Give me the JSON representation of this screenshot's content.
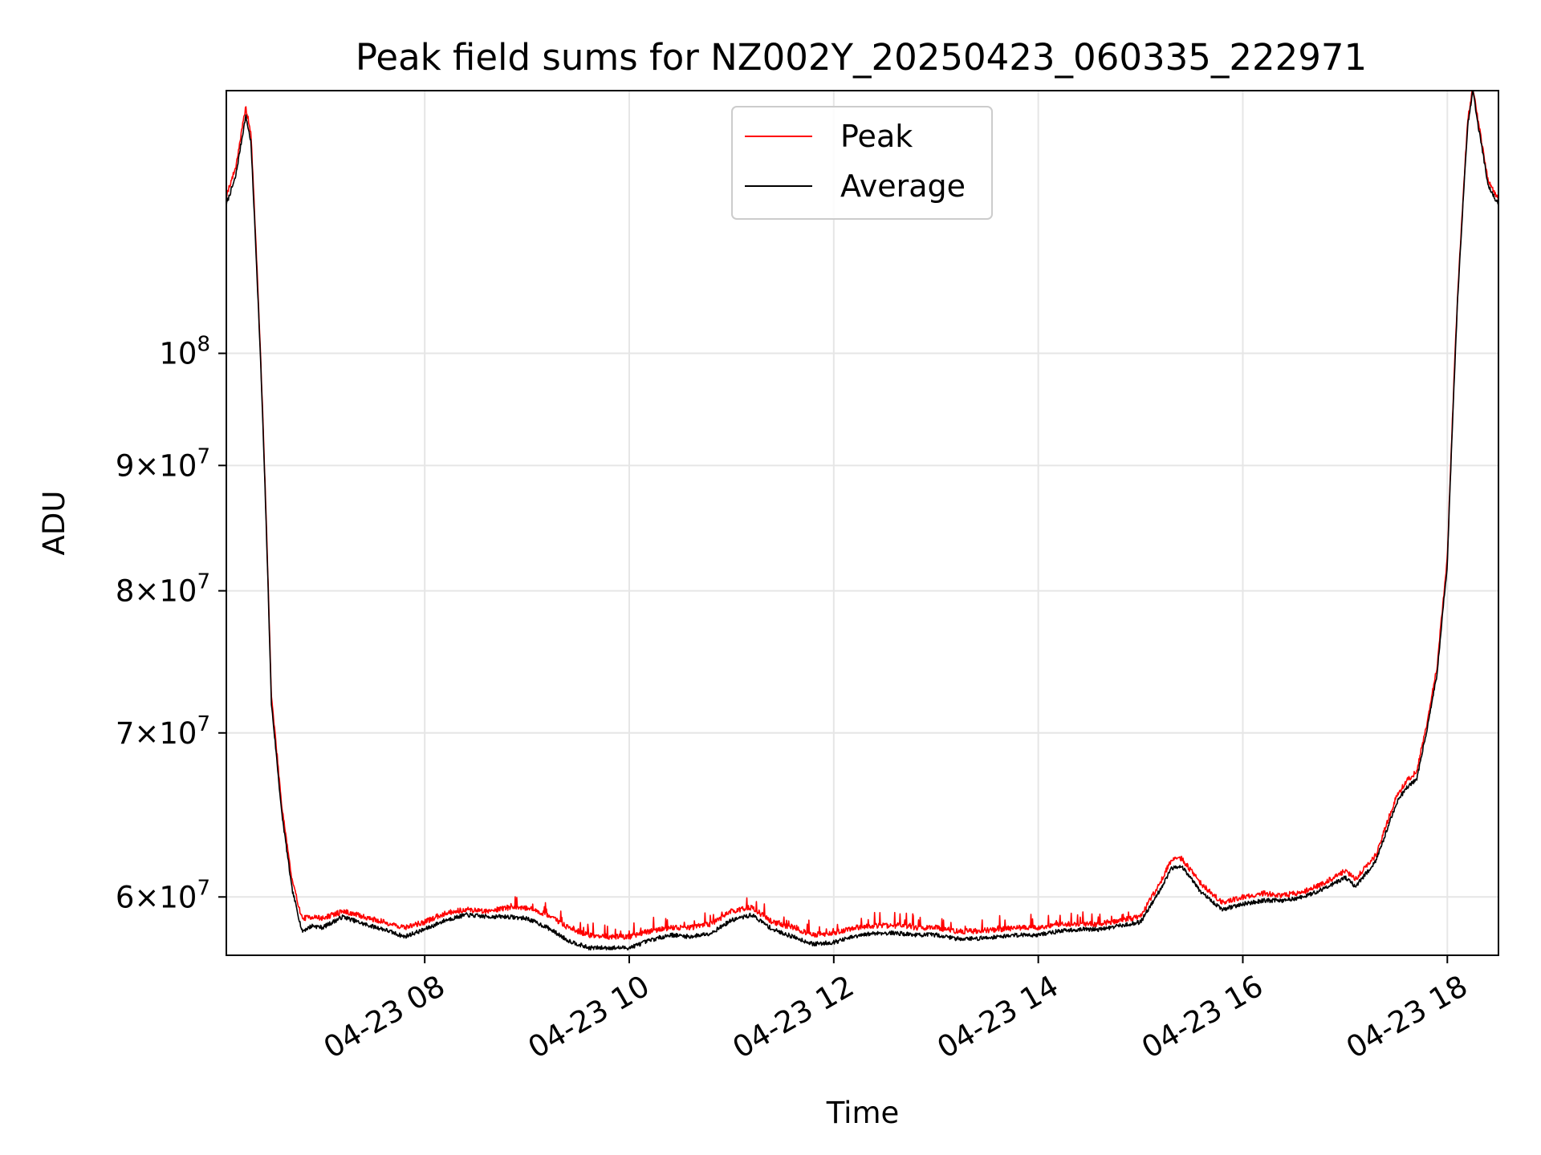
{
  "chart_data": {
    "type": "line",
    "title": "Peak field sums for NZ002Y_20250423_060335_222971",
    "xlabel": "Time",
    "ylabel": "ADU",
    "x_unit": "hours of 2025-04-23",
    "xlim": [
      6.06,
      18.5
    ],
    "ylim": [
      56800000,
      128000000
    ],
    "yscale": "log",
    "grid": true,
    "legend_position": "upper center",
    "x_tick_labels": [
      "04-23 08",
      "04-23 10",
      "04-23 12",
      "04-23 14",
      "04-23 16",
      "04-23 18"
    ],
    "x_ticks": [
      8,
      10,
      12,
      14,
      16,
      18
    ],
    "y_ticks": [
      {
        "value": 60000000,
        "mantissa": "6",
        "exp": "7"
      },
      {
        "value": 70000000,
        "mantissa": "7",
        "exp": "7"
      },
      {
        "value": 80000000,
        "mantissa": "8",
        "exp": "7"
      },
      {
        "value": 90000000,
        "mantissa": "9",
        "exp": "7"
      },
      {
        "value": 100000000,
        "mantissa": "",
        "exp": "8"
      }
    ],
    "series": [
      {
        "name": "Peak",
        "color": "#ff0000"
      },
      {
        "name": "Average",
        "color": "#000000"
      }
    ],
    "x": [
      6.06,
      6.15,
      6.25,
      6.3,
      6.4,
      6.5,
      6.6,
      6.7,
      6.8,
      6.9,
      7.0,
      7.2,
      7.4,
      7.6,
      7.8,
      8.0,
      8.2,
      8.4,
      8.6,
      8.8,
      9.0,
      9.2,
      9.4,
      9.6,
      9.8,
      10.0,
      10.2,
      10.4,
      10.6,
      10.8,
      11.0,
      11.2,
      11.4,
      11.6,
      11.8,
      12.0,
      12.2,
      12.4,
      12.6,
      12.8,
      13.0,
      13.2,
      13.4,
      13.6,
      13.8,
      14.0,
      14.2,
      14.4,
      14.6,
      14.8,
      15.0,
      15.2,
      15.3,
      15.4,
      15.6,
      15.8,
      16.0,
      16.2,
      16.4,
      16.6,
      16.8,
      17.0,
      17.1,
      17.3,
      17.5,
      17.6,
      17.7,
      17.8,
      17.9,
      18.0,
      18.1,
      18.2,
      18.25,
      18.3,
      18.4,
      18.5
    ],
    "average": [
      115000000,
      118000000,
      125000000,
      122000000,
      98000000,
      72000000,
      65000000,
      60500000,
      58100000,
      58400000,
      58300000,
      58900000,
      58500000,
      58200000,
      57800000,
      58200000,
      58700000,
      59000000,
      58900000,
      58900000,
      58800000,
      58300000,
      57600000,
      57200000,
      57200000,
      57200000,
      57600000,
      57900000,
      57800000,
      58000000,
      58700000,
      59000000,
      58200000,
      57800000,
      57400000,
      57500000,
      57800000,
      58000000,
      58000000,
      57900000,
      57900000,
      57700000,
      57700000,
      57800000,
      57900000,
      57900000,
      58100000,
      58200000,
      58200000,
      58400000,
      58600000,
      60500000,
      61600000,
      61800000,
      60200000,
      59300000,
      59600000,
      59800000,
      59800000,
      60000000,
      60500000,
      61100000,
      60600000,
      62000000,
      65500000,
      66500000,
      67000000,
      70200000,
      74000000,
      82000000,
      105000000,
      124000000,
      128000000,
      124000000,
      117000000,
      115000000
    ],
    "peak": [
      116000000,
      119000000,
      126000000,
      123000000,
      98500000,
      72500000,
      65500000,
      61000000,
      58800000,
      58900000,
      58800000,
      59200000,
      58900000,
      58600000,
      58300000,
      58600000,
      59100000,
      59300000,
      59200000,
      59400000,
      59400000,
      59000000,
      58300000,
      57900000,
      57800000,
      57800000,
      58100000,
      58300000,
      58300000,
      58500000,
      59200000,
      59400000,
      58600000,
      58300000,
      57900000,
      58000000,
      58300000,
      58400000,
      58400000,
      58300000,
      58300000,
      58100000,
      58100000,
      58200000,
      58300000,
      58300000,
      58500000,
      58500000,
      58500000,
      58700000,
      58900000,
      60900000,
      62100000,
      62200000,
      60700000,
      59700000,
      60000000,
      60200000,
      60100000,
      60300000,
      60800000,
      61500000,
      61000000,
      62400000,
      65900000,
      66900000,
      67500000,
      70600000,
      74500000,
      82500000,
      105500000,
      124500000,
      128500000,
      124500000,
      117500000,
      115500000
    ]
  }
}
